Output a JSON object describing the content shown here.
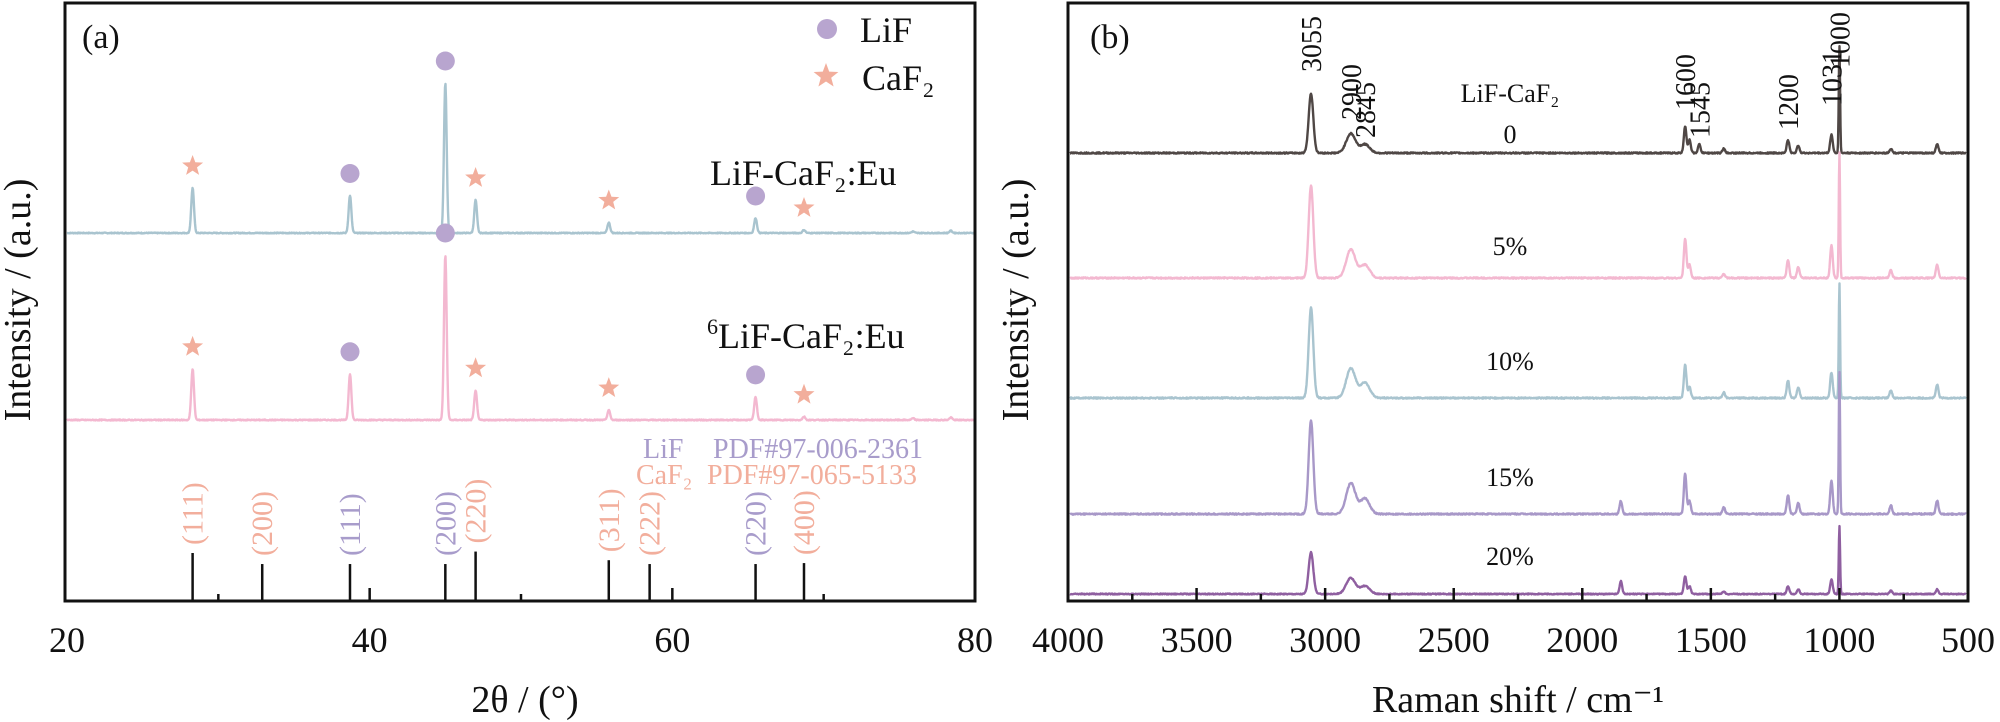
{
  "chart_data": [
    {
      "panel": "(a)",
      "type": "line",
      "title": "",
      "xlabel": "2θ / (°)",
      "ylabel": "Intensity / (a.u.)",
      "xlim": [
        20,
        80
      ],
      "xticks": [
        20,
        40,
        60,
        80
      ],
      "minor_xticks": [
        30,
        50,
        70
      ],
      "yticks": [],
      "grid": false,
      "legend": {
        "placement": "top-right",
        "entries": [
          {
            "label": "LiF",
            "marker": "circle",
            "color": "#b8a5cf"
          },
          {
            "label": "CaF₂",
            "marker": "star",
            "color": "#f2ae9c"
          }
        ]
      },
      "series": [
        {
          "name": "LiF-CaF₂:Eu",
          "label": "LiF-CaF₂:Eu",
          "color": "#a9c4cf",
          "peaks": [
            {
              "x": 28.3,
              "height": 0.3,
              "phase": "CaF2"
            },
            {
              "x": 38.7,
              "height": 0.25,
              "phase": "LiF"
            },
            {
              "x": 45.0,
              "height": 1.0,
              "phase": "LiF"
            },
            {
              "x": 47.0,
              "height": 0.22,
              "phase": "CaF2"
            },
            {
              "x": 55.8,
              "height": 0.07,
              "phase": "CaF2"
            },
            {
              "x": 65.5,
              "height": 0.1,
              "phase": "LiF"
            },
            {
              "x": 68.7,
              "height": 0.02,
              "phase": "CaF2"
            },
            {
              "x": 75.9,
              "height": 0.01,
              "phase": ""
            },
            {
              "x": 78.4,
              "height": 0.015,
              "phase": ""
            }
          ]
        },
        {
          "name": "6LiF-CaF₂:Eu",
          "label_sup": "6",
          "label": "LiF-CaF₂:Eu",
          "color": "#f3b8d0",
          "peaks": [
            {
              "x": 28.3,
              "height": 0.31,
              "phase": "CaF2"
            },
            {
              "x": 38.7,
              "height": 0.28,
              "phase": "LiF"
            },
            {
              "x": 45.0,
              "height": 1.0,
              "phase": "LiF"
            },
            {
              "x": 47.0,
              "height": 0.18,
              "phase": "CaF2"
            },
            {
              "x": 55.8,
              "height": 0.06,
              "phase": "CaF2"
            },
            {
              "x": 65.5,
              "height": 0.14,
              "phase": "LiF"
            },
            {
              "x": 68.7,
              "height": 0.02,
              "phase": "CaF2"
            },
            {
              "x": 75.9,
              "height": 0.01,
              "phase": ""
            },
            {
              "x": 78.4,
              "height": 0.015,
              "phase": ""
            }
          ]
        }
      ],
      "reference_lines": [
        {
          "x": 28.3,
          "hkl": "(111)",
          "phase": "CaF2",
          "rel": 1.0
        },
        {
          "x": 32.9,
          "hkl": "(200)",
          "phase": "CaF2",
          "rel": 0.77
        },
        {
          "x": 38.7,
          "hkl": "(111)",
          "phase": "LiF",
          "rel": 0.77
        },
        {
          "x": 45.0,
          "hkl": "(200)",
          "phase": "LiF",
          "rel": 0.77
        },
        {
          "x": 47.0,
          "hkl": "(220)",
          "phase": "CaF2",
          "rel": 1.03
        },
        {
          "x": 55.8,
          "hkl": "(311)",
          "phase": "CaF2",
          "rel": 0.85
        },
        {
          "x": 58.5,
          "hkl": "(222)",
          "phase": "CaF2",
          "rel": 0.77
        },
        {
          "x": 65.5,
          "hkl": "(220)",
          "phase": "LiF",
          "rel": 0.77
        },
        {
          "x": 68.7,
          "hkl": "(400)",
          "phase": "CaF2",
          "rel": 0.79
        }
      ],
      "reference_cards": [
        {
          "phase": "LiF",
          "label": "LiF",
          "pdf": "PDF#97-006-2361",
          "color": "#a89ccb"
        },
        {
          "phase": "CaF2",
          "label": "CaF₂",
          "pdf": "PDF#97-065-5133",
          "color": "#f2ae9c"
        }
      ]
    },
    {
      "panel": "(b)",
      "type": "line",
      "title": "",
      "xlabel": "Raman shift / cm⁻¹",
      "ylabel": "Intensity / (a.u.)",
      "xlim": [
        4000,
        500
      ],
      "xticks": [
        4000,
        3500,
        3000,
        2500,
        2000,
        1500,
        1000,
        500
      ],
      "minor_xticks": [
        3750,
        3250,
        2750,
        2250,
        1750,
        1250,
        750
      ],
      "yticks": [],
      "grid": false,
      "annotation_header": "LiF-CaF₂",
      "peak_labels": [
        "3055",
        "2900",
        "2845",
        "1600",
        "1545",
        "1200",
        "1031",
        "1000"
      ],
      "peak_positions": [
        3055,
        2900,
        2845,
        1600,
        1545,
        1200,
        1031,
        1000
      ],
      "series": [
        {
          "name": "0",
          "label": "0",
          "color": "#4f4745",
          "peaks": [
            [
              3055,
              0.55
            ],
            [
              2900,
              0.18
            ],
            [
              2845,
              0.08
            ],
            [
              1600,
              0.25
            ],
            [
              1583,
              0.12
            ],
            [
              1545,
              0.08
            ],
            [
              1450,
              0.04
            ],
            [
              1200,
              0.12
            ],
            [
              1160,
              0.07
            ],
            [
              1031,
              0.17
            ],
            [
              1000,
              1.0
            ],
            [
              800,
              0.04
            ],
            [
              620,
              0.08
            ]
          ]
        },
        {
          "name": "5%",
          "label": "5%",
          "color": "#f3b8d0",
          "peaks": [
            [
              3055,
              0.84
            ],
            [
              2900,
              0.26
            ],
            [
              2845,
              0.12
            ],
            [
              1600,
              0.36
            ],
            [
              1583,
              0.12
            ],
            [
              1450,
              0.04
            ],
            [
              1200,
              0.16
            ],
            [
              1160,
              0.1
            ],
            [
              1031,
              0.3
            ],
            [
              1000,
              1.15
            ],
            [
              800,
              0.07
            ],
            [
              620,
              0.12
            ]
          ]
        },
        {
          "name": "10%",
          "label": "10%",
          "color": "#a9c4cf",
          "peaks": [
            [
              3055,
              0.82
            ],
            [
              2900,
              0.27
            ],
            [
              2845,
              0.14
            ],
            [
              1600,
              0.3
            ],
            [
              1583,
              0.1
            ],
            [
              1450,
              0.05
            ],
            [
              1200,
              0.16
            ],
            [
              1160,
              0.1
            ],
            [
              1031,
              0.23
            ],
            [
              1000,
              1.05
            ],
            [
              800,
              0.07
            ],
            [
              620,
              0.12
            ]
          ]
        },
        {
          "name": "15%",
          "label": "15%",
          "color": "#a898c8",
          "peaks": [
            [
              3055,
              0.85
            ],
            [
              2900,
              0.28
            ],
            [
              2845,
              0.14
            ],
            [
              1850,
              0.12
            ],
            [
              1600,
              0.37
            ],
            [
              1583,
              0.12
            ],
            [
              1450,
              0.06
            ],
            [
              1200,
              0.17
            ],
            [
              1160,
              0.1
            ],
            [
              1031,
              0.3
            ],
            [
              1000,
              1.3
            ],
            [
              800,
              0.08
            ],
            [
              620,
              0.12
            ]
          ]
        },
        {
          "name": "20%",
          "label": "20%",
          "color": "#8f5fa0",
          "peaks": [
            [
              3055,
              0.52
            ],
            [
              2900,
              0.2
            ],
            [
              2845,
              0.1
            ],
            [
              1850,
              0.16
            ],
            [
              1600,
              0.22
            ],
            [
              1583,
              0.1
            ],
            [
              1450,
              0.03
            ],
            [
              1200,
              0.1
            ],
            [
              1160,
              0.06
            ],
            [
              1031,
              0.18
            ],
            [
              1000,
              0.85
            ],
            [
              800,
              0.04
            ],
            [
              620,
              0.06
            ]
          ]
        }
      ]
    }
  ]
}
